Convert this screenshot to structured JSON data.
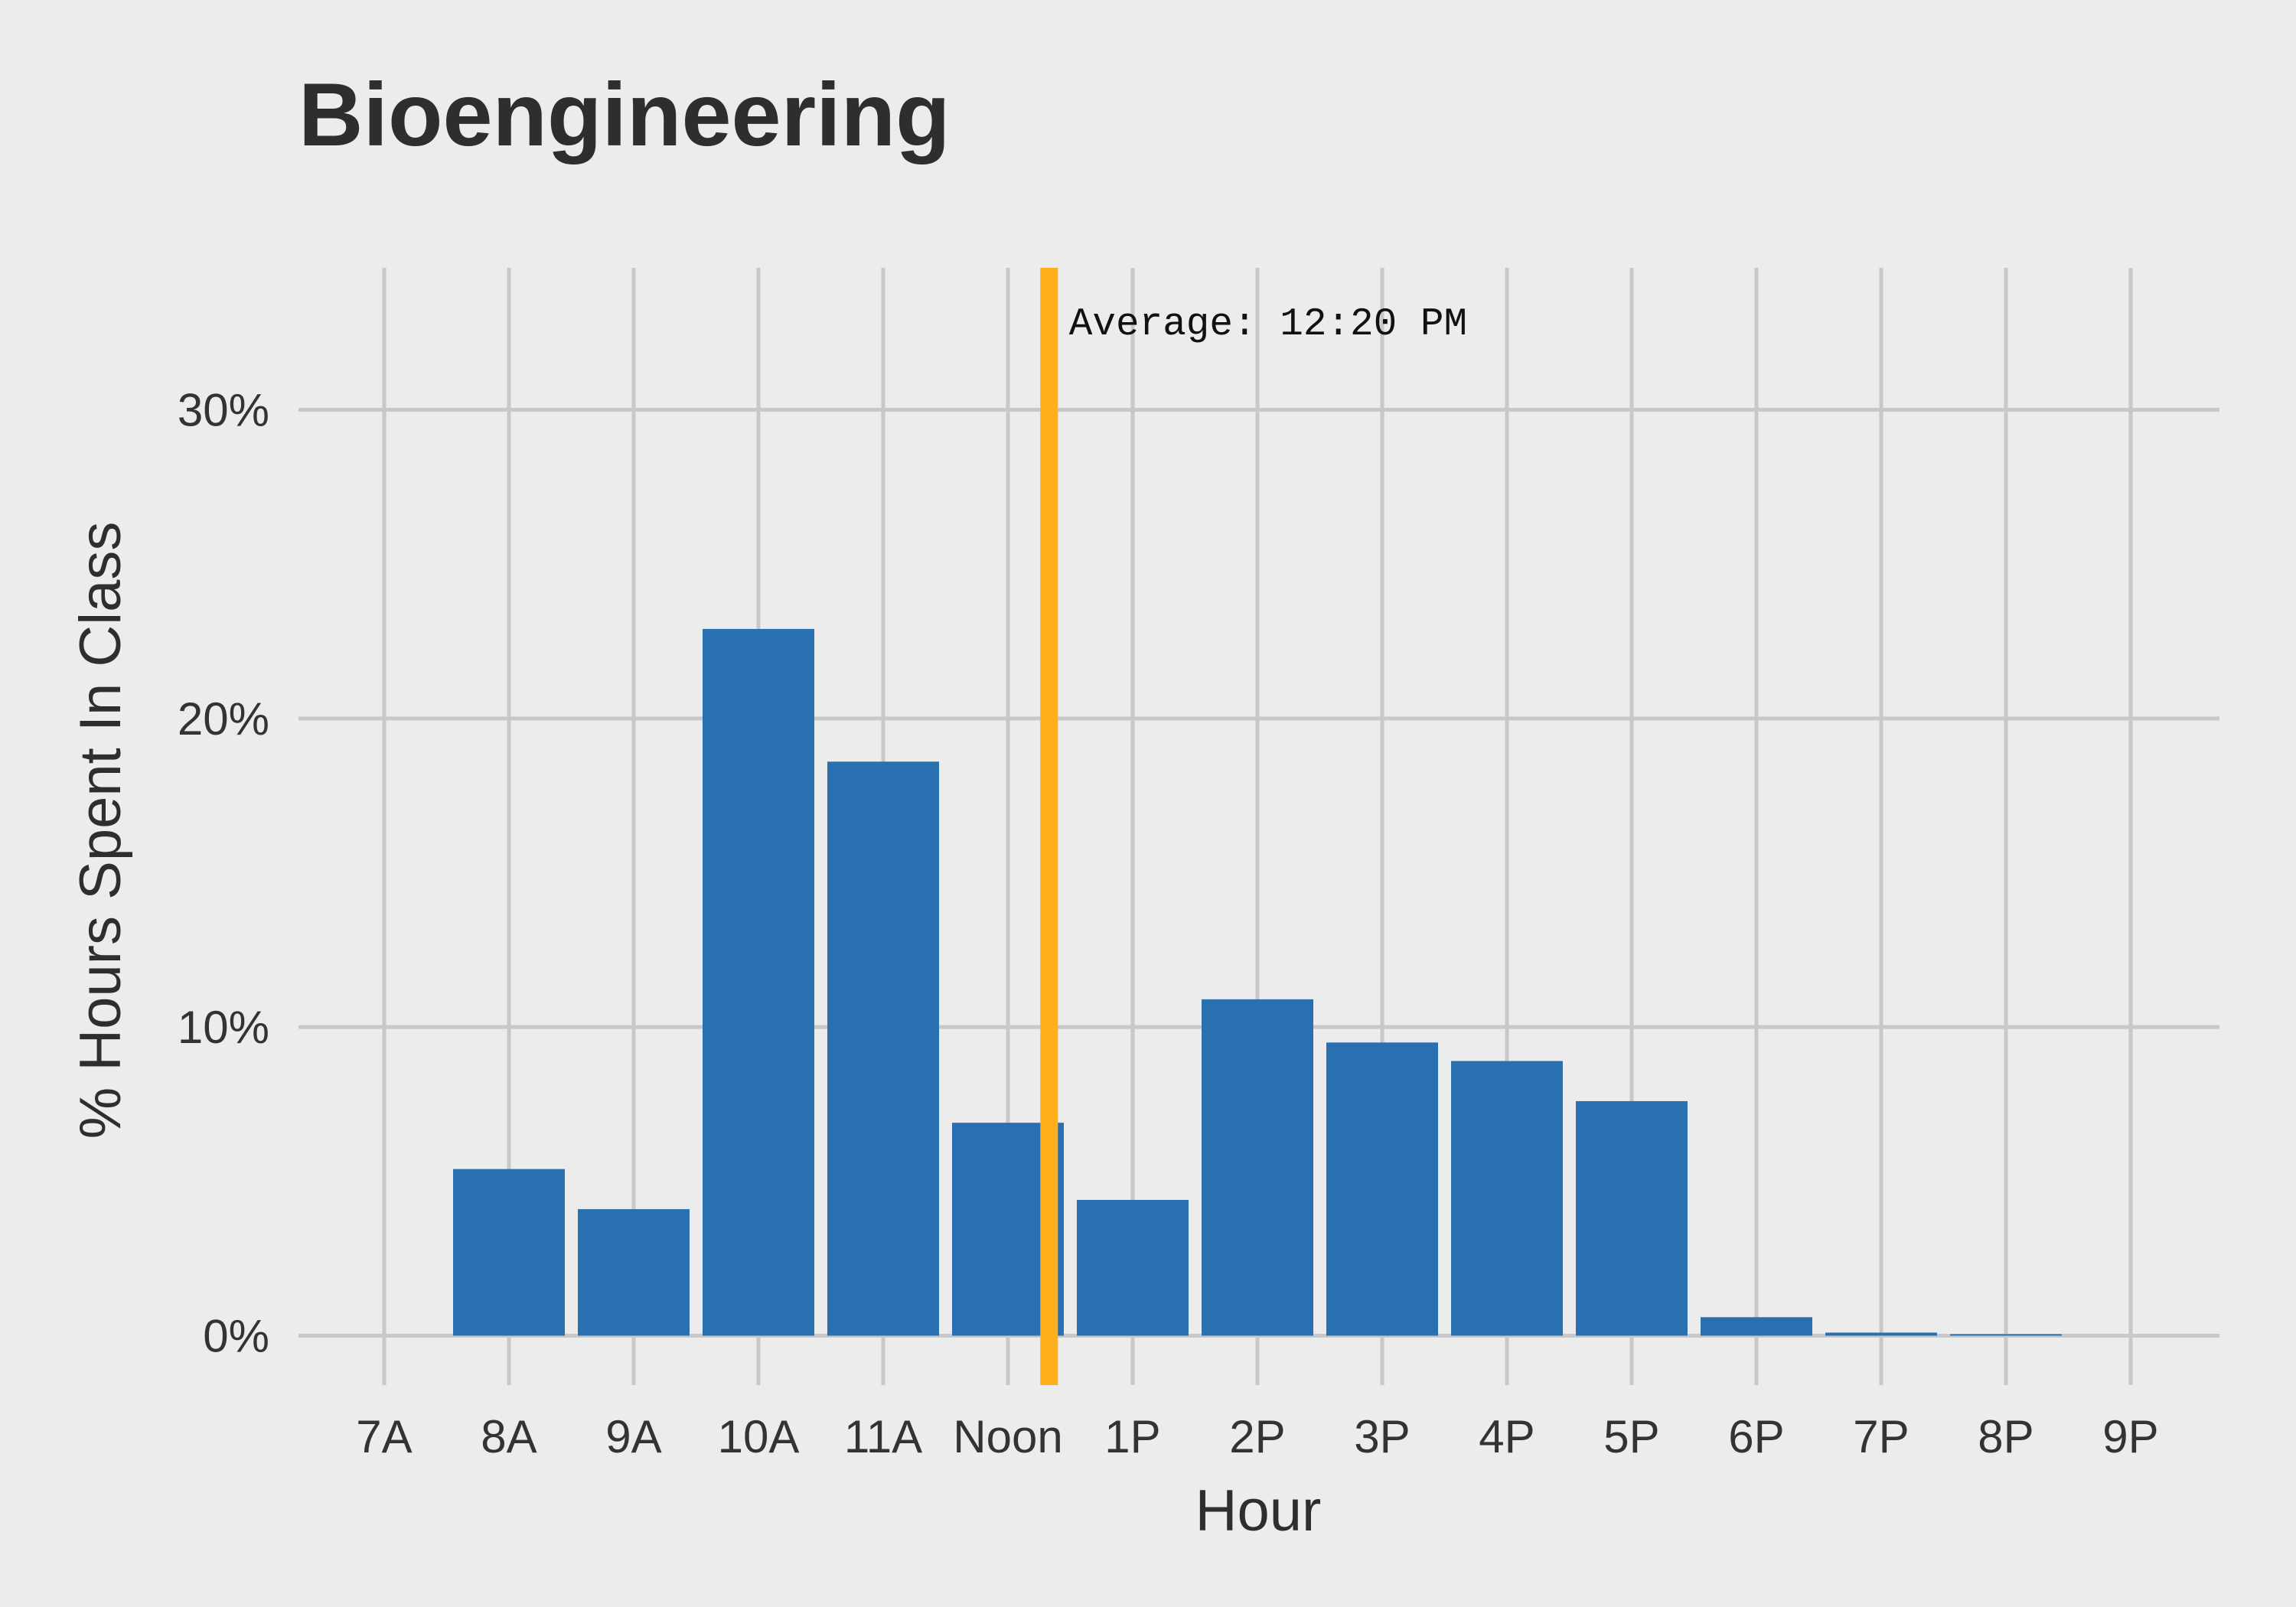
{
  "chart_data": {
    "type": "bar",
    "title": "Bioengineering",
    "xlabel": "Hour",
    "ylabel": "% Hours Spent In Class",
    "categories": [
      "7A",
      "8A",
      "9A",
      "10A",
      "11A",
      "Noon",
      "1P",
      "2P",
      "3P",
      "4P",
      "5P",
      "6P",
      "7P",
      "8P",
      "9P"
    ],
    "values": [
      0,
      5.4,
      4.1,
      22.9,
      18.6,
      6.9,
      4.4,
      10.9,
      9.5,
      8.9,
      7.6,
      0.6,
      0.1,
      0.05,
      0
    ],
    "value_unit": "%",
    "ylim": [
      -1.6,
      34.6
    ],
    "yticks": [
      0,
      10,
      20,
      30
    ],
    "ytick_labels": [
      "0%",
      "10%",
      "20%",
      "30%"
    ],
    "grid": true,
    "bar_color": "#2970b0",
    "reference_line": {
      "x_hour": 12.33,
      "label": "Average: 12:20 PM",
      "color": "#ffae1c"
    }
  },
  "colors": {
    "background": "#ececec",
    "grid": "#c8c8c8",
    "text": "#2e2e2e"
  }
}
